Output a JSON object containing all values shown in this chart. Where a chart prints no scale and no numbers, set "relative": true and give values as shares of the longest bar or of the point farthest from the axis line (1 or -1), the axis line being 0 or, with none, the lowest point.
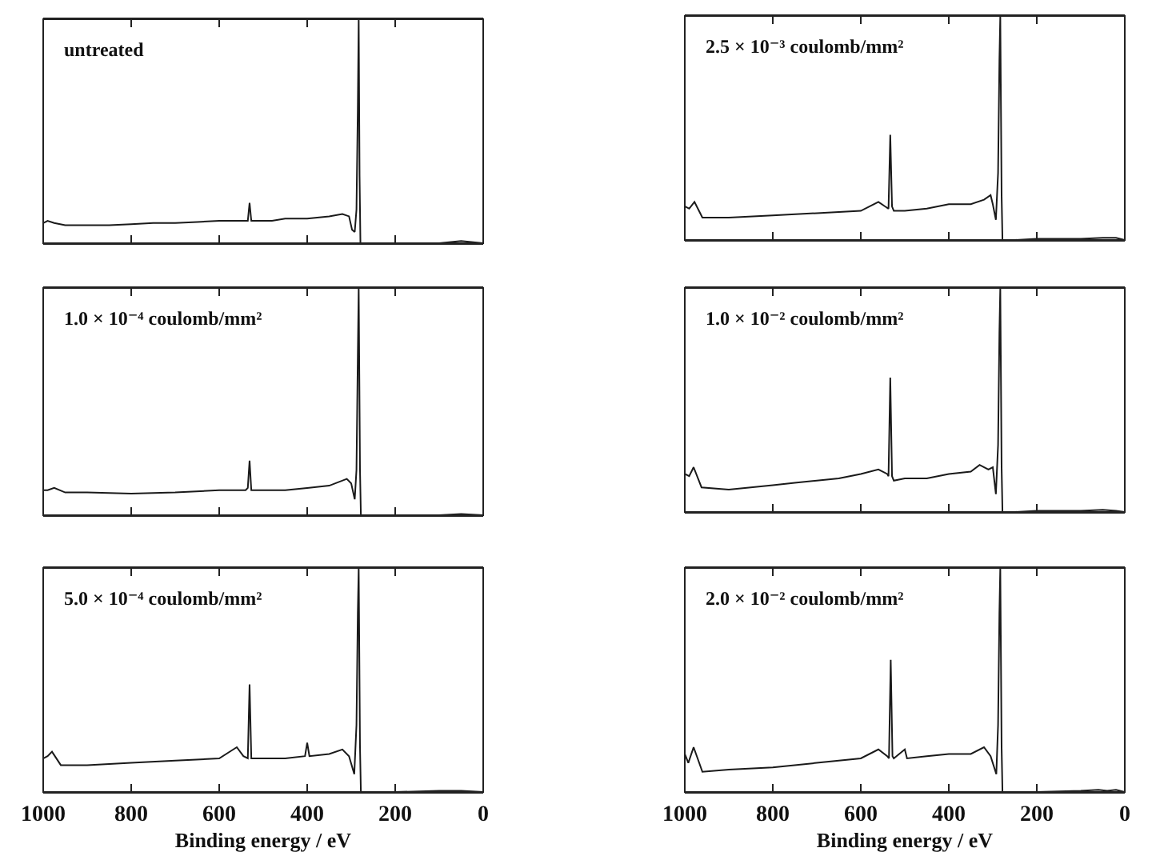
{
  "chart_data": [
    {
      "type": "line",
      "title": "untreated",
      "color": "#1a1a1a",
      "relative": true,
      "xlim": [
        1000,
        0
      ],
      "xticks": [
        1000,
        800,
        600,
        400,
        200,
        0
      ],
      "tick_labels": false,
      "x": [
        1000,
        990,
        975,
        950,
        900,
        850,
        800,
        750,
        700,
        650,
        600,
        550,
        535,
        531,
        527,
        520,
        480,
        450,
        400,
        350,
        320,
        305,
        298,
        292,
        288,
        285,
        283,
        281,
        279,
        275,
        250,
        200,
        100,
        50,
        0
      ],
      "values": [
        0.09,
        0.1,
        0.09,
        0.08,
        0.08,
        0.08,
        0.085,
        0.09,
        0.09,
        0.095,
        0.1,
        0.1,
        0.1,
        0.18,
        0.1,
        0.1,
        0.1,
        0.11,
        0.11,
        0.12,
        0.13,
        0.12,
        0.06,
        0.05,
        0.15,
        0.6,
        1,
        0.3,
        0,
        0,
        0,
        0,
        0,
        0.01,
        0
      ]
    },
    {
      "type": "line",
      "title": "2.5 × 10⁻³ coulomb/mm²",
      "color": "#1a1a1a",
      "relative": true,
      "xlim": [
        1000,
        0
      ],
      "xticks": [
        1000,
        800,
        600,
        400,
        200,
        0
      ],
      "tick_labels": false,
      "x": [
        1000,
        990,
        978,
        960,
        900,
        800,
        700,
        600,
        560,
        545,
        537,
        533,
        529,
        525,
        500,
        450,
        400,
        350,
        320,
        305,
        300,
        293,
        288,
        285,
        283,
        280,
        278,
        250,
        200,
        100,
        50,
        20,
        0
      ],
      "values": [
        0.15,
        0.14,
        0.17,
        0.1,
        0.1,
        0.11,
        0.12,
        0.13,
        0.17,
        0.15,
        0.14,
        0.47,
        0.15,
        0.13,
        0.13,
        0.14,
        0.16,
        0.16,
        0.18,
        0.2,
        0.16,
        0.09,
        0.3,
        0.8,
        1,
        0.2,
        0,
        0,
        0.005,
        0.005,
        0.01,
        0.01,
        0
      ]
    },
    {
      "type": "line",
      "title": "1.0 × 10⁻⁴ coulomb/mm²",
      "color": "#1a1a1a",
      "relative": true,
      "xlim": [
        1000,
        0
      ],
      "xticks": [
        1000,
        800,
        600,
        400,
        200,
        0
      ],
      "tick_labels": false,
      "x": [
        1000,
        990,
        975,
        950,
        900,
        800,
        700,
        600,
        540,
        535,
        531,
        527,
        520,
        450,
        400,
        350,
        310,
        300,
        292,
        288,
        285,
        283,
        280,
        278,
        250,
        200,
        100,
        50,
        0
      ],
      "values": [
        0.11,
        0.11,
        0.12,
        0.1,
        0.1,
        0.095,
        0.1,
        0.11,
        0.11,
        0.12,
        0.24,
        0.11,
        0.11,
        0.11,
        0.12,
        0.13,
        0.16,
        0.14,
        0.07,
        0.2,
        0.7,
        1,
        0.2,
        0,
        0,
        0,
        0,
        0.005,
        0
      ]
    },
    {
      "type": "line",
      "title": "1.0 × 10⁻² coulomb/mm²",
      "color": "#1a1a1a",
      "relative": true,
      "xlim": [
        1000,
        0
      ],
      "xticks": [
        1000,
        800,
        600,
        400,
        200,
        0
      ],
      "tick_labels": false,
      "x": [
        1000,
        990,
        980,
        962,
        900,
        850,
        800,
        750,
        700,
        650,
        600,
        560,
        540,
        537,
        533,
        529,
        525,
        500,
        450,
        400,
        350,
        330,
        310,
        300,
        293,
        288,
        285,
        283,
        280,
        278,
        250,
        200,
        100,
        50,
        20,
        0
      ],
      "values": [
        0.17,
        0.16,
        0.2,
        0.11,
        0.1,
        0.11,
        0.12,
        0.13,
        0.14,
        0.15,
        0.17,
        0.19,
        0.17,
        0.16,
        0.6,
        0.16,
        0.14,
        0.15,
        0.15,
        0.17,
        0.18,
        0.21,
        0.19,
        0.2,
        0.08,
        0.3,
        0.8,
        1,
        0.2,
        0,
        0,
        0.005,
        0.005,
        0.01,
        0.005,
        0
      ]
    },
    {
      "type": "line",
      "title": "5.0 × 10⁻⁴ coulomb/mm²",
      "xlabel": "Binding energy / eV",
      "color": "#1a1a1a",
      "relative": true,
      "xlim": [
        1000,
        0
      ],
      "xticks": [
        1000,
        800,
        600,
        400,
        200,
        0
      ],
      "tick_labels": "x",
      "x": [
        1000,
        990,
        980,
        960,
        900,
        800,
        700,
        600,
        560,
        545,
        535,
        531,
        527,
        520,
        450,
        405,
        400,
        395,
        350,
        320,
        305,
        293,
        288,
        285,
        283,
        280,
        278,
        250,
        200,
        100,
        50,
        0
      ],
      "values": [
        0.15,
        0.16,
        0.18,
        0.12,
        0.12,
        0.13,
        0.14,
        0.15,
        0.2,
        0.16,
        0.15,
        0.48,
        0.15,
        0.15,
        0.15,
        0.16,
        0.22,
        0.16,
        0.17,
        0.19,
        0.16,
        0.08,
        0.3,
        0.8,
        1,
        0.2,
        0,
        0,
        0,
        0.005,
        0.005,
        0
      ]
    },
    {
      "type": "line",
      "title": "2.0 × 10⁻² coulomb/mm²",
      "xlabel": "Binding energy / eV",
      "color": "#1a1a1a",
      "relative": true,
      "xlim": [
        1000,
        0
      ],
      "xticks": [
        1000,
        800,
        600,
        400,
        200,
        0
      ],
      "tick_labels": "x",
      "x": [
        1000,
        992,
        980,
        960,
        900,
        800,
        700,
        600,
        560,
        540,
        536,
        532,
        528,
        525,
        500,
        495,
        450,
        400,
        350,
        320,
        305,
        292,
        288,
        285,
        283,
        280,
        278,
        250,
        200,
        100,
        60,
        40,
        20,
        0
      ],
      "values": [
        0.17,
        0.13,
        0.2,
        0.09,
        0.1,
        0.11,
        0.13,
        0.15,
        0.19,
        0.16,
        0.15,
        0.59,
        0.16,
        0.15,
        0.19,
        0.15,
        0.16,
        0.17,
        0.17,
        0.2,
        0.16,
        0.08,
        0.3,
        0.8,
        1,
        0.2,
        0,
        0,
        0,
        0.005,
        0.01,
        0.005,
        0.01,
        0
      ]
    }
  ]
}
